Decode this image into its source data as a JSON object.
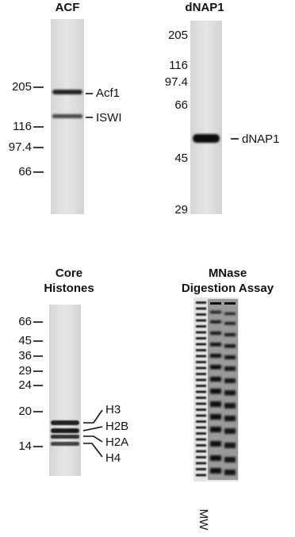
{
  "panels": [
    {
      "title": "ACF",
      "markers": [
        "205",
        "116",
        "97.4",
        "66"
      ],
      "bands": [
        "Acf1",
        "ISWI"
      ]
    },
    {
      "title": "dNAP1",
      "markers": [
        "205",
        "116",
        "97.4",
        "66",
        "45",
        "29"
      ],
      "bands": [
        "dNAP1"
      ]
    },
    {
      "title": [
        "Core",
        "Histones"
      ],
      "markers": [
        "66",
        "45",
        "36",
        "29",
        "24",
        "20",
        "14"
      ],
      "bands": [
        "H3",
        "H2B",
        "H2A",
        "H4"
      ]
    },
    {
      "title": [
        "MNase",
        "Digestion Assay"
      ],
      "lane_label": "MW"
    }
  ]
}
